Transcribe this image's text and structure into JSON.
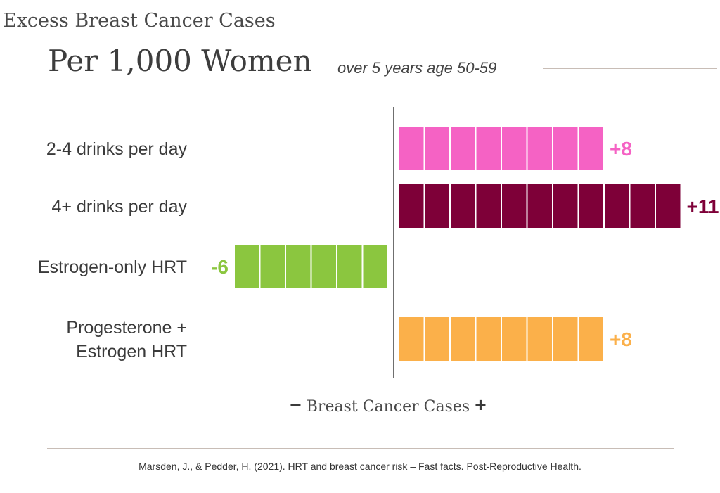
{
  "header": {
    "title_top": "Excess Breast Cancer Cases",
    "title_main": "Per 1,000 Women",
    "title_sub": "over 5 years age 50-59"
  },
  "axis_caption": {
    "minus": "−",
    "label": "Breast Cancer Cases",
    "plus": "+"
  },
  "footer": {
    "citation": "Marsden, J., & Pedder, H. (2021). HRT and breast cancer risk – Fast facts. Post-Reproductive Health."
  },
  "chart_data": {
    "type": "bar",
    "orientation": "horizontal",
    "title": "Excess Breast Cancer Cases",
    "subtitle": "Per 1,000 Women over 5 years age 50-59",
    "xlabel": "Breast Cancer Cases",
    "unit_blocks": true,
    "categories": [
      [
        "2-4 drinks per day"
      ],
      [
        "4+ drinks per day"
      ],
      [
        "Estrogen-only HRT"
      ],
      [
        "Progesterone +",
        "Estrogen HRT"
      ]
    ],
    "values": [
      8,
      11,
      -6,
      8
    ],
    "value_labels": [
      "+8",
      "+11",
      "-6",
      "+8"
    ],
    "colors": [
      "#f562c4",
      "#7e0038",
      "#8bc63f",
      "#fbb04a"
    ]
  }
}
